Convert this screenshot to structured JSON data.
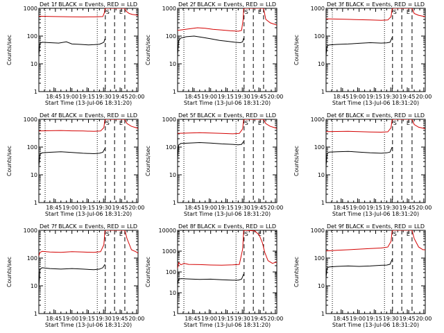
{
  "colors": {
    "events": "#000000",
    "lld": "#d40000",
    "axis": "#000000"
  },
  "common": {
    "ylabel": "Counts/sec",
    "xlabel": "Start Time (13-Jul-06 18:31:20)",
    "x_ticks": [
      "18:45",
      "19:00",
      "19:15",
      "19:30",
      "19:45",
      "20:00"
    ],
    "markers": [
      "S",
      "E"
    ]
  },
  "chart_data": [
    {
      "type": "line",
      "title": "Det 1f BLACK = Events, RED = LLD",
      "ylim": [
        1,
        1000
      ],
      "y_ticks": [
        "1",
        "10",
        "100",
        "1000"
      ],
      "xlim_min": [
        0,
        90
      ],
      "saa_start_min": 60.3,
      "saa_end_min": 78,
      "dotted_min": [
        5.7,
        53
      ],
      "dashed_min": [
        60.3,
        68.7,
        78
      ],
      "series": [
        {
          "name": "Events",
          "x": [
            0,
            1,
            3,
            10,
            18,
            25,
            30,
            38,
            45,
            50,
            55,
            57,
            59,
            60
          ],
          "y": [
            20,
            55,
            60,
            58,
            56,
            62,
            52,
            50,
            48,
            49,
            51,
            55,
            60,
            80
          ]
        },
        {
          "name": "LLD",
          "x": [
            0,
            10,
            20,
            30,
            40,
            50,
            58,
            59.5,
            60,
            60.3,
            78,
            79,
            82,
            85,
            88,
            90
          ],
          "y": [
            520,
            510,
            500,
            495,
            490,
            495,
            505,
            700,
            1000,
            1000,
            1000,
            800,
            650,
            600,
            580,
            560
          ]
        }
      ]
    },
    {
      "type": "line",
      "title": "Det 2f BLACK = Events, RED = LLD",
      "ylim": [
        1,
        1000
      ],
      "y_ticks": [
        "1",
        "10",
        "100",
        "1000"
      ],
      "xlim_min": [
        0,
        90
      ],
      "saa_start_min": 60.3,
      "saa_end_min": 78,
      "dotted_min": [
        5.7,
        53
      ],
      "dashed_min": [
        60.3,
        68.7,
        78
      ],
      "series": [
        {
          "name": "Events",
          "x": [
            0,
            1,
            3,
            8,
            15,
            22,
            30,
            38,
            45,
            52,
            57,
            59,
            60
          ],
          "y": [
            20,
            70,
            85,
            95,
            100,
            90,
            80,
            70,
            65,
            60,
            58,
            62,
            85
          ]
        },
        {
          "name": "LLD",
          "x": [
            0,
            5,
            12,
            18,
            25,
            32,
            40,
            48,
            55,
            58,
            59.5,
            60,
            60.3,
            78,
            80,
            84,
            90
          ],
          "y": [
            160,
            170,
            185,
            200,
            190,
            175,
            165,
            155,
            150,
            160,
            400,
            1000,
            1000,
            1000,
            400,
            300,
            250
          ]
        }
      ]
    },
    {
      "type": "line",
      "title": "Det 3f BLACK = Events, RED = LLD",
      "ylim": [
        1,
        1000
      ],
      "y_ticks": [
        "1",
        "10",
        "100",
        "1000"
      ],
      "xlim_min": [
        0,
        90
      ],
      "saa_start_min": 60.3,
      "saa_end_min": 78,
      "dotted_min": [
        5.7,
        53
      ],
      "dashed_min": [
        60.3,
        68.7,
        78
      ],
      "series": [
        {
          "name": "Events",
          "x": [
            0,
            1,
            3,
            10,
            20,
            30,
            40,
            50,
            55,
            58,
            60
          ],
          "y": [
            20,
            45,
            48,
            50,
            52,
            55,
            58,
            56,
            57,
            60,
            90
          ]
        },
        {
          "name": "LLD",
          "x": [
            0,
            10,
            20,
            30,
            40,
            50,
            56,
            59,
            60,
            60.3,
            78,
            80,
            84,
            88,
            90
          ],
          "y": [
            420,
            410,
            400,
            390,
            380,
            370,
            380,
            500,
            1000,
            1000,
            1000,
            650,
            560,
            520,
            500
          ]
        }
      ]
    },
    {
      "type": "line",
      "title": "Det 4f BLACK = Events, RED = LLD",
      "ylim": [
        1,
        1000
      ],
      "y_ticks": [
        "1",
        "10",
        "100",
        "1000"
      ],
      "xlim_min": [
        0,
        90
      ],
      "saa_start_min": 60.3,
      "saa_end_min": 78,
      "dotted_min": [
        5.7,
        53
      ],
      "dashed_min": [
        60.3,
        68.7,
        78
      ],
      "series": [
        {
          "name": "Events",
          "x": [
            0,
            1,
            3,
            10,
            20,
            30,
            40,
            50,
            55,
            58,
            60
          ],
          "y": [
            20,
            55,
            62,
            65,
            68,
            64,
            60,
            58,
            60,
            65,
            90
          ]
        },
        {
          "name": "LLD",
          "x": [
            0,
            10,
            20,
            30,
            40,
            50,
            56,
            59,
            60,
            60.3,
            78,
            80,
            84,
            88,
            90
          ],
          "y": [
            380,
            390,
            395,
            385,
            380,
            370,
            380,
            500,
            1000,
            1000,
            1000,
            700,
            560,
            500,
            470
          ]
        }
      ]
    },
    {
      "type": "line",
      "title": "Det 5f BLACK = Events, RED = LLD",
      "ylim": [
        1,
        1000
      ],
      "y_ticks": [
        "1",
        "10",
        "100",
        "1000"
      ],
      "xlim_min": [
        0,
        90
      ],
      "saa_start_min": 60.3,
      "saa_end_min": 78,
      "dotted_min": [
        5.7,
        53
      ],
      "dashed_min": [
        60.3,
        68.7,
        78
      ],
      "series": [
        {
          "name": "Events",
          "x": [
            0,
            1,
            3,
            10,
            20,
            30,
            40,
            50,
            55,
            58,
            60
          ],
          "y": [
            40,
            120,
            135,
            140,
            145,
            140,
            130,
            125,
            120,
            125,
            160
          ]
        },
        {
          "name": "LLD",
          "x": [
            0,
            10,
            20,
            30,
            40,
            50,
            56,
            59,
            60,
            60.3,
            78,
            80,
            84,
            88,
            90
          ],
          "y": [
            310,
            320,
            330,
            320,
            310,
            300,
            310,
            450,
            1000,
            1000,
            1000,
            700,
            560,
            500,
            470
          ]
        }
      ]
    },
    {
      "type": "line",
      "title": "Det 6f BLACK = Events, RED = LLD",
      "ylim": [
        1,
        1000
      ],
      "y_ticks": [
        "1",
        "10",
        "100",
        "1000"
      ],
      "xlim_min": [
        0,
        90
      ],
      "saa_start_min": 60.3,
      "saa_end_min": 78,
      "dotted_min": [
        5.7,
        53
      ],
      "dashed_min": [
        60.3,
        68.7,
        78
      ],
      "series": [
        {
          "name": "Events",
          "x": [
            0,
            1,
            3,
            10,
            20,
            30,
            40,
            50,
            55,
            58,
            60
          ],
          "y": [
            20,
            60,
            66,
            68,
            70,
            66,
            62,
            60,
            62,
            66,
            100
          ]
        },
        {
          "name": "LLD",
          "x": [
            0,
            10,
            20,
            30,
            40,
            50,
            56,
            59,
            60,
            60.3,
            78,
            80,
            84,
            88,
            90
          ],
          "y": [
            360,
            365,
            370,
            360,
            350,
            345,
            355,
            500,
            1000,
            1000,
            1000,
            650,
            520,
            480,
            460
          ]
        }
      ]
    },
    {
      "type": "line",
      "title": "Det 7f BLACK = Events, RED = LLD",
      "ylim": [
        1,
        1000
      ],
      "y_ticks": [
        "1",
        "10",
        "100",
        "1000"
      ],
      "xlim_min": [
        0,
        90
      ],
      "saa_start_min": 60.3,
      "saa_end_min": 78,
      "dotted_min": [
        5.7,
        53
      ],
      "dashed_min": [
        60.3,
        68.7,
        78
      ],
      "series": [
        {
          "name": "Events",
          "x": [
            0,
            1,
            3,
            10,
            20,
            30,
            40,
            50,
            55,
            58,
            60
          ],
          "y": [
            8,
            40,
            45,
            42,
            40,
            42,
            40,
            38,
            40,
            45,
            60
          ]
        },
        {
          "name": "LLD",
          "x": [
            0,
            1,
            3,
            10,
            20,
            30,
            40,
            50,
            56,
            59,
            60,
            60.3,
            78,
            80,
            84,
            88,
            90
          ],
          "y": [
            120,
            160,
            175,
            165,
            160,
            170,
            165,
            160,
            170,
            300,
            1000,
            1000,
            1000,
            500,
            200,
            170,
            150
          ]
        }
      ]
    },
    {
      "type": "line",
      "title": "Det 8f BLACK = Events, RED = LLD",
      "ylim": [
        1,
        10000
      ],
      "y_ticks": [
        "1",
        "10",
        "100",
        "1000",
        "10000"
      ],
      "xlim_min": [
        0,
        90
      ],
      "saa_start_min": 60.3,
      "saa_end_min": 78,
      "dotted_min": [
        5.7,
        53
      ],
      "dashed_min": [
        60.3,
        68.7,
        78
      ],
      "series": [
        {
          "name": "Events",
          "x": [
            0,
            1,
            3,
            10,
            20,
            30,
            40,
            50,
            55,
            58,
            60
          ],
          "y": [
            25,
            45,
            48,
            46,
            44,
            45,
            42,
            40,
            40,
            45,
            80
          ]
        },
        {
          "name": "LLD",
          "x": [
            0,
            1,
            3,
            6,
            10,
            20,
            30,
            40,
            50,
            56,
            59,
            60,
            60.3,
            70,
            74,
            77,
            79,
            82,
            86,
            90
          ],
          "y": [
            150,
            280,
            220,
            260,
            230,
            225,
            215,
            210,
            220,
            230,
            1200,
            10000,
            10000,
            9500,
            6000,
            2500,
            900,
            350,
            260,
            300
          ]
        }
      ]
    },
    {
      "type": "line",
      "title": "Det 9f BLACK = Events, RED = LLD",
      "ylim": [
        1,
        1000
      ],
      "y_ticks": [
        "1",
        "10",
        "100",
        "1000"
      ],
      "xlim_min": [
        0,
        90
      ],
      "saa_start_min": 60.3,
      "saa_end_min": 78,
      "dotted_min": [
        5.7,
        53
      ],
      "dashed_min": [
        60.3,
        68.7,
        78
      ],
      "series": [
        {
          "name": "Events",
          "x": [
            0,
            1,
            3,
            10,
            20,
            30,
            40,
            50,
            55,
            58,
            60
          ],
          "y": [
            20,
            45,
            48,
            50,
            52,
            50,
            52,
            55,
            56,
            60,
            90
          ]
        },
        {
          "name": "LLD",
          "x": [
            0,
            10,
            20,
            30,
            40,
            50,
            56,
            59,
            60,
            60.3,
            78,
            80,
            84,
            88,
            90
          ],
          "y": [
            180,
            190,
            200,
            210,
            220,
            230,
            250,
            400,
            1000,
            1000,
            1000,
            500,
            250,
            200,
            200
          ]
        }
      ]
    }
  ]
}
